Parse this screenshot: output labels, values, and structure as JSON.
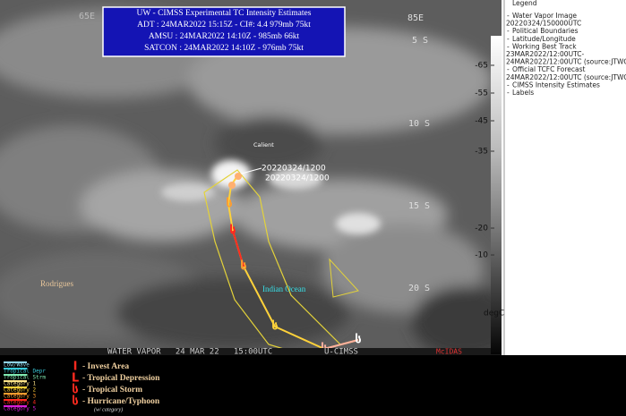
{
  "header": {
    "lines": [
      "UW - CIMSS Experimental TC Intensity Estimates",
      "ADT : 24MAR2022 15:15Z - CI#: 4.4  979mb  75kt",
      "AMSU : 24MAR2022 14:10Z -  985mb  66kt",
      "SATCON : 24MAR2022 14:10Z -  976mb  75kt"
    ]
  },
  "map_labels": {
    "lon_left": "65E",
    "lon_right": "85E",
    "lat": [
      "5 S",
      "10 S",
      "15 S",
      "20 S"
    ],
    "storm_name": "Calient",
    "time_labels": [
      "20220324/1200",
      "20220324/1200"
    ],
    "rodrigues": "Rodrigues",
    "ocean": "Indian Ocean",
    "footer": "WATER VAPOR   24 MAR 22   15:00UTC",
    "footer_right": "U-CIMSS",
    "mcidas": "McIDAS"
  },
  "legend": {
    "title": "Legend",
    "items": [
      "Water Vapor Image",
      "20220324/150000UTC",
      "Political Boundaries",
      "Latitude/Longitude",
      "Working Best Track",
      "23MAR2022/12:00UTC-",
      "24MAR2022/12:00UTC   (source:JTWC)",
      "Official TCFC Forecast",
      "24MAR2022/12:00UTC   (source:JTWC)",
      "CIMSS Intensity Estimates",
      "Labels"
    ]
  },
  "colorbar": {
    "ticks": [
      -65,
      -55,
      -45,
      -35,
      -20,
      -10
    ],
    "unit": "degC"
  },
  "category_key": [
    {
      "name": "Low/Wave",
      "color": "#8fd3e6"
    },
    {
      "name": "Tropical Depr",
      "color": "#39c9d9"
    },
    {
      "name": "Tropical Strm",
      "color": "#7fe7b0"
    },
    {
      "name": "Category 1",
      "color": "#ffe58a"
    },
    {
      "name": "Category 2",
      "color": "#ffd23a"
    },
    {
      "name": "Category 3",
      "color": "#ff9d2e"
    },
    {
      "name": "Category 4",
      "color": "#ff2a1f"
    },
    {
      "name": "Category 5",
      "color": "#d81fd8"
    }
  ],
  "symbol_key": [
    {
      "symbol": "I",
      "label": "- Invest Area"
    },
    {
      "symbol": "L",
      "label": "- Tropical Depression"
    },
    {
      "symbol": "ს",
      "label": "- Tropical Storm"
    },
    {
      "symbol": "ს",
      "label": "- Hurricane/Typhoon"
    }
  ],
  "symbol_note": "(w/ category)"
}
